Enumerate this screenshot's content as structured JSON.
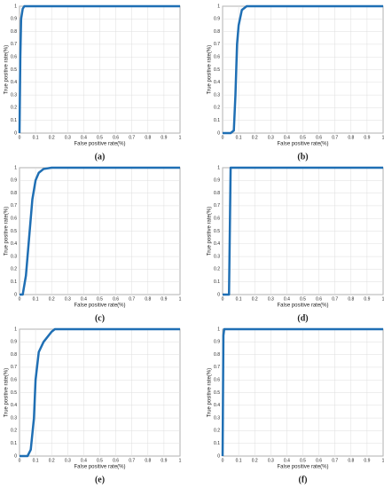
{
  "chart_data": [
    {
      "type": "line",
      "caption": "(a)",
      "xlabel": "False positive rate(%)",
      "ylabel": "True positive rate(%)",
      "x": [
        0,
        0.005,
        0.01,
        0.02,
        0.03,
        1
      ],
      "series": [
        {
          "color": "#1f6fb4",
          "values": [
            0,
            0.6,
            0.9,
            0.98,
            1,
            1
          ]
        }
      ],
      "xlim": [
        0,
        1
      ],
      "ylim": [
        0,
        1
      ],
      "xticks": [
        0,
        0.1,
        0.2,
        0.3,
        0.4,
        0.5,
        0.6,
        0.7,
        0.8,
        0.9,
        1
      ],
      "yticks": [
        0,
        0.1,
        0.2,
        0.3,
        0.4,
        0.5,
        0.6,
        0.7,
        0.8,
        0.9,
        1
      ],
      "grid": true
    },
    {
      "type": "line",
      "caption": "(b)",
      "xlabel": "False positive rate(%)",
      "ylabel": "True positive rate(%)",
      "x": [
        0,
        0.05,
        0.07,
        0.08,
        0.09,
        0.1,
        0.12,
        0.15,
        1
      ],
      "series": [
        {
          "color": "#1f6fb4",
          "values": [
            0,
            0,
            0.02,
            0.3,
            0.7,
            0.85,
            0.97,
            1,
            1
          ]
        }
      ],
      "xlim": [
        0,
        1
      ],
      "ylim": [
        0,
        1
      ],
      "xticks": [
        0,
        0.1,
        0.2,
        0.3,
        0.4,
        0.5,
        0.6,
        0.7,
        0.8,
        0.9,
        1
      ],
      "yticks": [
        0,
        0.1,
        0.2,
        0.3,
        0.4,
        0.5,
        0.6,
        0.7,
        0.8,
        0.9,
        1
      ],
      "grid": true
    },
    {
      "type": "line",
      "caption": "(c)",
      "xlabel": "False positive rate(%)",
      "ylabel": "True positive rate(%)",
      "x": [
        0,
        0.02,
        0.04,
        0.06,
        0.08,
        0.1,
        0.12,
        0.15,
        0.2,
        1
      ],
      "series": [
        {
          "color": "#1f6fb4",
          "values": [
            0,
            0,
            0.15,
            0.45,
            0.75,
            0.9,
            0.96,
            0.99,
            1,
            1
          ]
        }
      ],
      "xlim": [
        0,
        1
      ],
      "ylim": [
        0,
        1
      ],
      "xticks": [
        0,
        0.1,
        0.2,
        0.3,
        0.4,
        0.5,
        0.6,
        0.7,
        0.8,
        0.9,
        1
      ],
      "yticks": [
        0,
        0.1,
        0.2,
        0.3,
        0.4,
        0.5,
        0.6,
        0.7,
        0.8,
        0.9,
        1
      ],
      "grid": true
    },
    {
      "type": "line",
      "caption": "(d)",
      "xlabel": "False positive rate(%)",
      "ylabel": "True positive rate(%)",
      "x": [
        0,
        0.04,
        0.05,
        0.06,
        1
      ],
      "series": [
        {
          "color": "#1f6fb4",
          "values": [
            0,
            0,
            1,
            1,
            1
          ]
        }
      ],
      "xlim": [
        0,
        1
      ],
      "ylim": [
        0,
        1
      ],
      "xticks": [
        0,
        0.1,
        0.2,
        0.3,
        0.4,
        0.5,
        0.6,
        0.7,
        0.8,
        0.9,
        1
      ],
      "yticks": [
        0,
        0.1,
        0.2,
        0.3,
        0.4,
        0.5,
        0.6,
        0.7,
        0.8,
        0.9,
        1
      ],
      "grid": true
    },
    {
      "type": "line",
      "caption": "(e)",
      "xlabel": "False positive rate(%)",
      "ylabel": "True positive rate(%)",
      "x": [
        0,
        0.05,
        0.07,
        0.09,
        0.1,
        0.12,
        0.15,
        0.2,
        0.22,
        1
      ],
      "series": [
        {
          "color": "#1f6fb4",
          "values": [
            0,
            0,
            0.05,
            0.3,
            0.6,
            0.82,
            0.9,
            0.98,
            1,
            1
          ]
        }
      ],
      "xlim": [
        0,
        1
      ],
      "ylim": [
        0,
        1
      ],
      "xticks": [
        0,
        0.1,
        0.2,
        0.3,
        0.4,
        0.5,
        0.6,
        0.7,
        0.8,
        0.9,
        1
      ],
      "yticks": [
        0,
        0.1,
        0.2,
        0.3,
        0.4,
        0.5,
        0.6,
        0.7,
        0.8,
        0.9,
        1
      ],
      "grid": true
    },
    {
      "type": "line",
      "caption": "(f)",
      "xlabel": "False positive rate(%)",
      "ylabel": "True positive rate(%)",
      "x": [
        0,
        0.005,
        0.01,
        1
      ],
      "series": [
        {
          "color": "#1f6fb4",
          "values": [
            0,
            0.95,
            1,
            1
          ]
        }
      ],
      "xlim": [
        0,
        1
      ],
      "ylim": [
        0,
        1
      ],
      "xticks": [
        0,
        0.1,
        0.2,
        0.3,
        0.4,
        0.5,
        0.6,
        0.7,
        0.8,
        0.9,
        1
      ],
      "yticks": [
        0,
        0.1,
        0.2,
        0.3,
        0.4,
        0.5,
        0.6,
        0.7,
        0.8,
        0.9,
        1
      ],
      "grid": true
    }
  ]
}
